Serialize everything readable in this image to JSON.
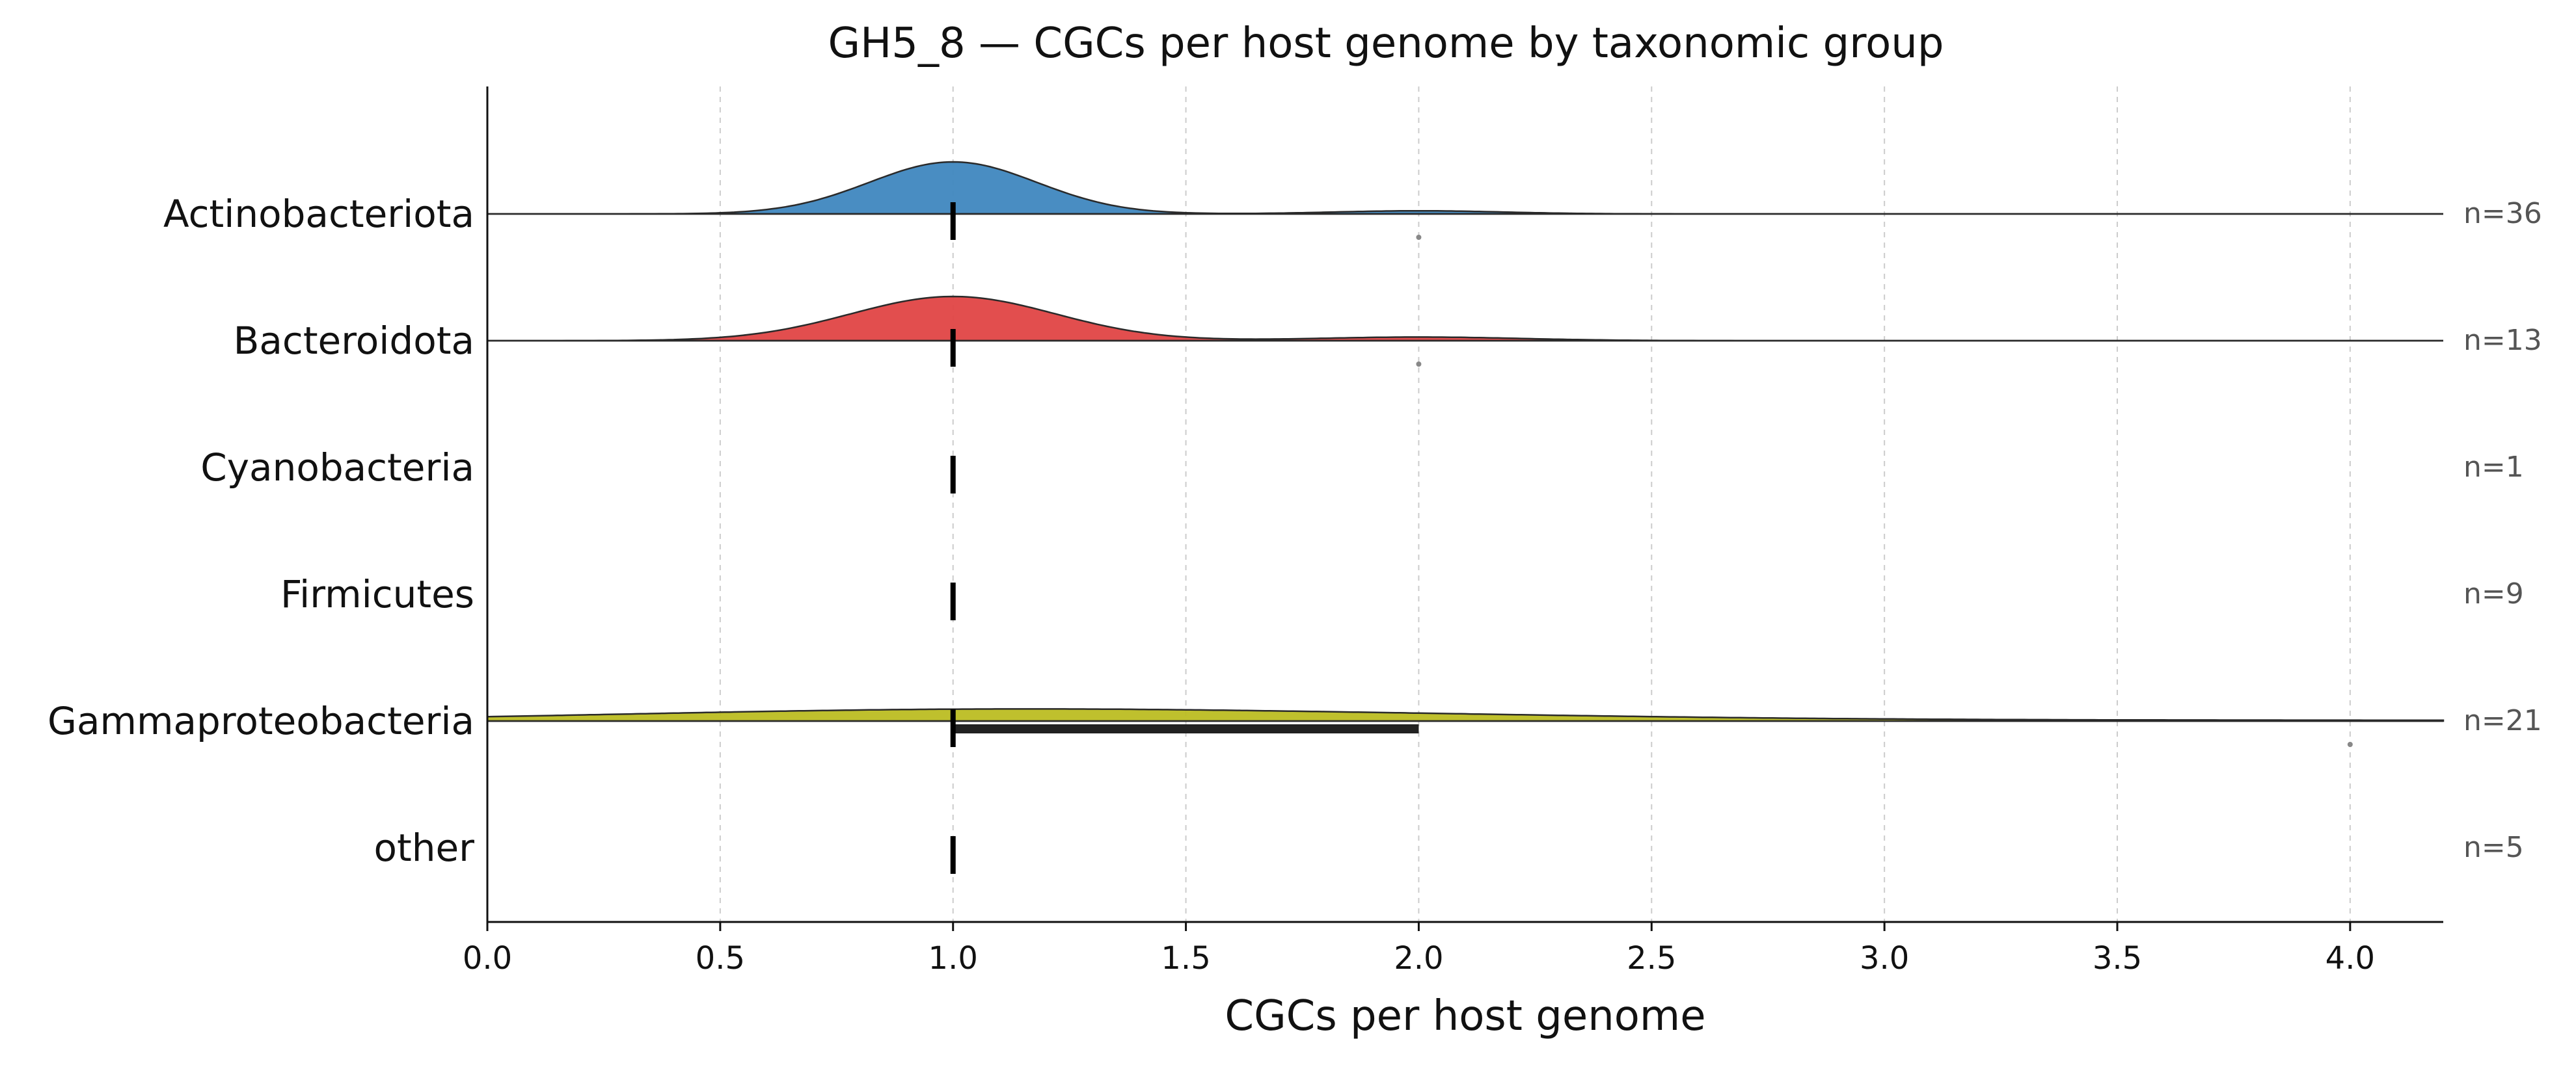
{
  "chart_data": {
    "type": "ridgeline",
    "title": "GH5_8 — CGCs per host genome by taxonomic group",
    "xlabel": "CGCs per host genome",
    "xlim": [
      0.0,
      4.2
    ],
    "xticks": [
      0.0,
      0.5,
      1.0,
      1.5,
      2.0,
      2.5,
      3.0,
      3.5,
      4.0
    ],
    "xtick_labels": [
      "0.0",
      "0.5",
      "1.0",
      "1.5",
      "2.0",
      "2.5",
      "3.0",
      "3.5",
      "4.0"
    ],
    "grid": "vertical dashed",
    "groups": [
      {
        "name": "Actinobacteriota",
        "n_label": "n=36",
        "color": "#3f87bf",
        "values": {
          "1": 34,
          "2": 2
        },
        "median": 1.0,
        "iqr": [
          1.0,
          1.0
        ],
        "outliers": [
          2.0
        ],
        "density_peaks": [
          {
            "x": 1.0,
            "height": 1.0,
            "sd": 0.18
          },
          {
            "x": 2.0,
            "height": 0.06,
            "sd": 0.18
          }
        ]
      },
      {
        "name": "Bacteroidota",
        "n_label": "n=13",
        "color": "#e04444",
        "values": {
          "1": 12,
          "2": 1
        },
        "median": 1.0,
        "iqr": [
          1.0,
          1.0
        ],
        "outliers": [
          2.0
        ],
        "density_peaks": [
          {
            "x": 1.0,
            "height": 0.85,
            "sd": 0.22
          },
          {
            "x": 2.0,
            "height": 0.07,
            "sd": 0.22
          }
        ]
      },
      {
        "name": "Cyanobacteria",
        "n_label": "n=1",
        "color": "#9467bd",
        "values": {
          "1": 1
        },
        "median": 1.0,
        "iqr": [
          1.0,
          1.0
        ],
        "outliers": [],
        "density_peaks": []
      },
      {
        "name": "Firmicutes",
        "n_label": "n=9",
        "color": "#2ca02c",
        "values": {
          "1": 9
        },
        "median": 1.0,
        "iqr": [
          1.0,
          1.0
        ],
        "outliers": [],
        "density_peaks": []
      },
      {
        "name": "Gammaproteobacteria",
        "n_label": "n=21",
        "color": "#bcbd22",
        "values": {
          "1": 15,
          "2": 5,
          "4": 1
        },
        "median": 1.0,
        "iqr": [
          1.0,
          2.0
        ],
        "outliers": [
          4.0
        ],
        "density_peaks": [
          {
            "x": 1.0,
            "height": 0.2,
            "sd": 0.75
          },
          {
            "x": 2.0,
            "height": 0.07,
            "sd": 0.75
          },
          {
            "x": 4.0,
            "height": 0.015,
            "sd": 0.75
          }
        ]
      },
      {
        "name": "other",
        "n_label": "n=5",
        "color": "#7f7f7f",
        "values": {
          "1": 5
        },
        "median": 1.0,
        "iqr": [
          1.0,
          1.0
        ],
        "outliers": [],
        "density_peaks": []
      }
    ]
  }
}
